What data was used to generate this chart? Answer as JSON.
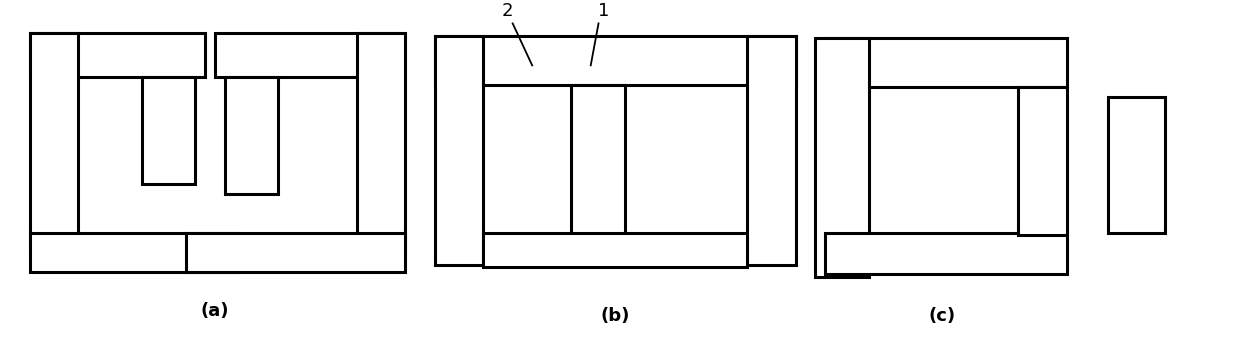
{
  "fig_width": 12.4,
  "fig_height": 3.63,
  "bg_color": "#ffffff",
  "line_color": "#000000",
  "line_width": 2.2,
  "label_a": "(a)",
  "label_b": "(b)",
  "label_c": "(c)",
  "label_fontsize": 13,
  "annot_1": "1",
  "annot_2": "2",
  "annot_fontsize": 13
}
